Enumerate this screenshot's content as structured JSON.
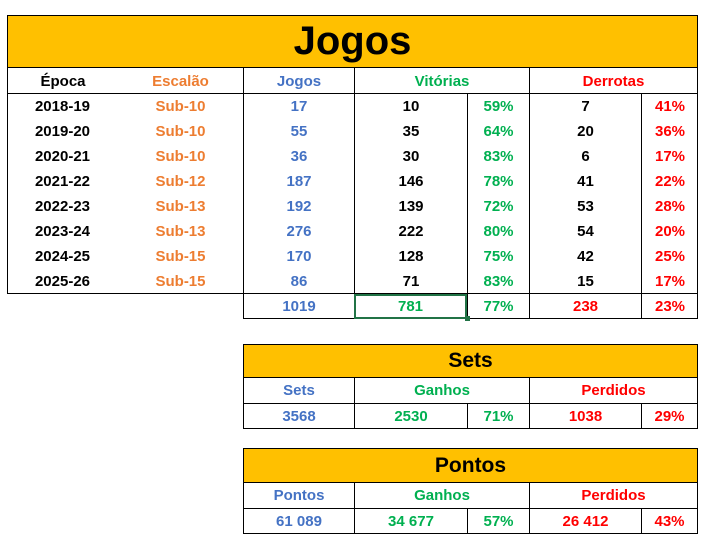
{
  "jogos": {
    "title": "Jogos",
    "headers": {
      "epoca": "Época",
      "escalao": "Escalão",
      "jogos": "Jogos",
      "vitorias": "Vitórias",
      "derrotas": "Derrotas"
    },
    "rows": [
      {
        "epoca": "2018-19",
        "escalao": "Sub-10",
        "jogos": "17",
        "vitorias": "10",
        "vit_pct": "59%",
        "derrotas": "7",
        "der_pct": "41%"
      },
      {
        "epoca": "2019-20",
        "escalao": "Sub-10",
        "jogos": "55",
        "vitorias": "35",
        "vit_pct": "64%",
        "derrotas": "20",
        "der_pct": "36%"
      },
      {
        "epoca": "2020-21",
        "escalao": "Sub-10",
        "jogos": "36",
        "vitorias": "30",
        "vit_pct": "83%",
        "derrotas": "6",
        "der_pct": "17%"
      },
      {
        "epoca": "2021-22",
        "escalao": "Sub-12",
        "jogos": "187",
        "vitorias": "146",
        "vit_pct": "78%",
        "derrotas": "41",
        "der_pct": "22%"
      },
      {
        "epoca": "2022-23",
        "escalao": "Sub-13",
        "jogos": "192",
        "vitorias": "139",
        "vit_pct": "72%",
        "derrotas": "53",
        "der_pct": "28%"
      },
      {
        "epoca": "2023-24",
        "escalao": "Sub-13",
        "jogos": "276",
        "vitorias": "222",
        "vit_pct": "80%",
        "derrotas": "54",
        "der_pct": "20%"
      },
      {
        "epoca": "2024-25",
        "escalao": "Sub-15",
        "jogos": "170",
        "vitorias": "128",
        "vit_pct": "75%",
        "derrotas": "42",
        "der_pct": "25%"
      },
      {
        "epoca": "2025-26",
        "escalao": "Sub-15",
        "jogos": "86",
        "vitorias": "71",
        "vit_pct": "83%",
        "derrotas": "15",
        "der_pct": "17%"
      }
    ],
    "totals": {
      "jogos": "1019",
      "vitorias": "781",
      "vit_pct": "77%",
      "derrotas": "238",
      "der_pct": "23%"
    }
  },
  "sets": {
    "title": "Sets",
    "headers": {
      "sets": "Sets",
      "ganhos": "Ganhos",
      "perdidos": "Perdidos"
    },
    "values": {
      "sets": "3568",
      "ganhos": "2530",
      "ganhos_pct": "71%",
      "perdidos": "1038",
      "perdidos_pct": "29%"
    }
  },
  "pontos": {
    "title": "Pontos",
    "headers": {
      "pontos": "Pontos",
      "ganhos": "Ganhos",
      "perdidos": "Perdidos"
    },
    "values": {
      "pontos": "61 089",
      "ganhos": "34 677",
      "ganhos_pct": "57%",
      "perdidos": "26 412",
      "perdidos_pct": "43%"
    }
  },
  "colors": {
    "header_fill": "#FFC000",
    "orange": "#ED7D31",
    "blue": "#4472C4",
    "green": "#00B050",
    "red": "#FF0000",
    "selection": "#217346"
  }
}
